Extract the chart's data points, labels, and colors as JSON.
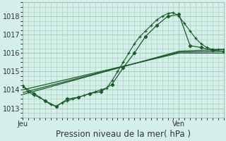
{
  "bg_color": "#d4eeea",
  "grid_color": "#aaccbb",
  "line_color": "#1a5c28",
  "marker_color": "#1a5c28",
  "xlabel": "Pression niveau de la mer( hPa )",
  "xlabel_fontsize": 8.5,
  "tick_fontsize": 7,
  "ylim": [
    1012.5,
    1018.7
  ],
  "yticks": [
    1013,
    1014,
    1015,
    1016,
    1017,
    1018
  ],
  "xlim": [
    0,
    36
  ],
  "xtick_positions": [
    0,
    28,
    36
  ],
  "xtick_labels": [
    "Jeu",
    "Ven",
    ""
  ],
  "vline_x": 28,
  "series1_x": [
    0,
    1,
    2,
    3,
    4,
    5,
    6,
    7,
    8,
    9,
    10,
    11,
    12,
    13,
    14,
    15,
    16,
    17,
    18,
    19,
    20,
    21,
    22,
    23,
    24,
    25,
    26,
    27,
    28,
    29,
    30,
    31,
    32,
    33,
    34,
    35,
    36
  ],
  "series1_y": [
    1014.2,
    1013.9,
    1013.7,
    1013.6,
    1013.4,
    1013.2,
    1013.1,
    1013.3,
    1013.4,
    1013.5,
    1013.6,
    1013.7,
    1013.8,
    1013.9,
    1014.0,
    1014.1,
    1014.5,
    1015.0,
    1015.5,
    1016.0,
    1016.5,
    1016.9,
    1017.2,
    1017.5,
    1017.8,
    1018.0,
    1018.15,
    1018.2,
    1018.0,
    1017.6,
    1017.2,
    1016.8,
    1016.5,
    1016.3,
    1016.2,
    1016.2,
    1016.2
  ],
  "series2_x": [
    0,
    2,
    4,
    6,
    8,
    10,
    12,
    14,
    16,
    18,
    20,
    22,
    24,
    26,
    28,
    30,
    32,
    34,
    36
  ],
  "series2_y": [
    1014.2,
    1013.8,
    1013.4,
    1013.1,
    1013.5,
    1013.6,
    1013.8,
    1013.9,
    1014.3,
    1015.2,
    1016.0,
    1016.9,
    1017.5,
    1018.0,
    1018.1,
    1016.4,
    1016.3,
    1016.15,
    1016.1
  ],
  "series3_x": [
    0,
    28,
    36
  ],
  "series3_y": [
    1014.0,
    1016.0,
    1016.0
  ],
  "series4_x": [
    0,
    28,
    36
  ],
  "series4_y": [
    1013.85,
    1016.05,
    1016.1
  ],
  "series5_x": [
    0,
    28,
    36
  ],
  "series5_y": [
    1013.75,
    1016.1,
    1016.2
  ]
}
